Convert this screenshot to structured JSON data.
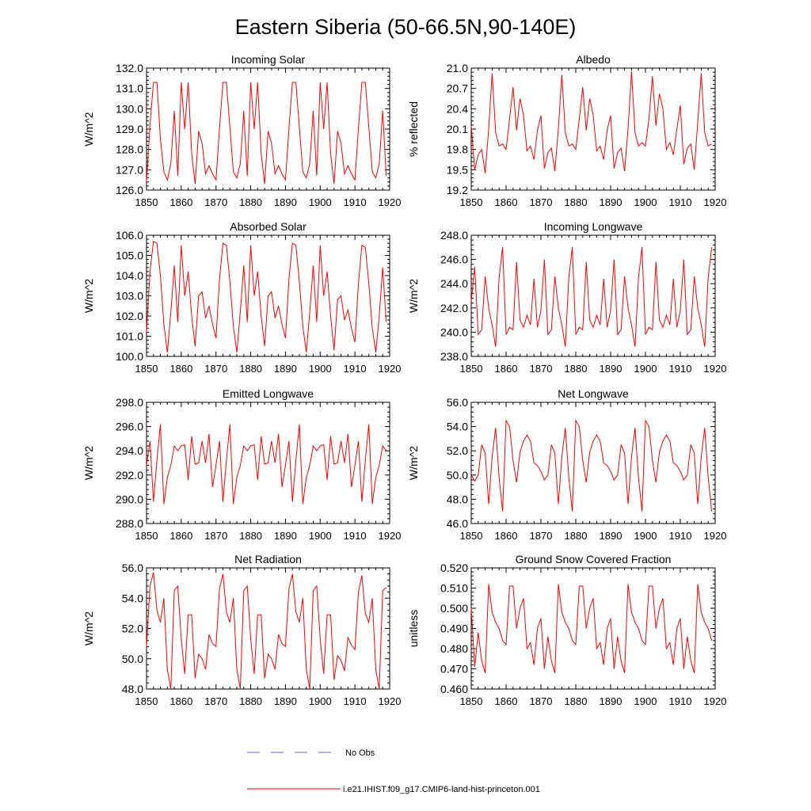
{
  "title": "Eastern Siberia (50-66.5N,90-140E)",
  "colors": {
    "model": "#ff0000",
    "obs": "#6a6ad0",
    "axis": "#000000"
  },
  "legend": {
    "obs_label": "No Obs",
    "model_label": "i.e21.IHIST.f09_g17.CMIP6-land-hist-princeton.001"
  },
  "chart_data": [
    {
      "type": "line",
      "title": "Incoming Solar",
      "ylabel": "W/m^2",
      "xlim": [
        1850,
        1920
      ],
      "ylim": [
        126.0,
        132.0
      ],
      "xticks": [
        1850,
        1860,
        1870,
        1880,
        1890,
        1900,
        1910,
        1920
      ],
      "xticklabels": [
        "1850",
        "1860",
        "1870",
        "1880",
        "1890",
        "1900",
        "1910",
        "1920"
      ],
      "yticks": [
        126.0,
        127.0,
        128.0,
        129.0,
        130.0,
        131.0,
        132.0
      ],
      "yticklabels": [
        "126.0",
        "127.0",
        "128.0",
        "129.0",
        "130.0",
        "131.0",
        "132.0"
      ],
      "x_start": 1850,
      "series": [
        {
          "values": [
            126.4,
            129.2,
            131.3,
            131.3,
            128.5,
            126.9,
            126.5,
            127.3,
            129.9,
            126.7,
            131.3,
            129.0,
            131.3,
            127.8,
            126.3,
            128.9,
            128.3,
            126.8,
            127.2,
            126.8,
            126.5,
            129.0,
            131.3,
            131.3,
            129.1,
            126.9,
            126.6,
            127.3,
            129.9,
            126.7,
            131.3,
            129.0,
            131.3,
            127.8,
            126.3,
            128.9,
            128.3,
            126.8,
            127.2,
            126.8,
            126.5,
            129.0,
            131.3,
            131.3,
            129.1,
            126.9,
            126.6,
            127.3,
            129.9,
            126.7,
            131.3,
            129.0,
            131.3,
            127.8,
            126.3,
            128.9,
            128.3,
            126.8,
            127.2,
            126.8,
            126.5,
            129.0,
            131.3,
            131.3,
            129.1,
            126.9,
            126.6,
            127.3,
            129.9,
            126.7
          ]
        }
      ]
    },
    {
      "type": "line",
      "title": "Albedo",
      "ylabel": "% reflected",
      "xlim": [
        1850,
        1920
      ],
      "ylim": [
        19.2,
        21.0
      ],
      "xticks": [
        1850,
        1860,
        1870,
        1880,
        1890,
        1900,
        1910,
        1920
      ],
      "xticklabels": [
        "1850",
        "1860",
        "1870",
        "1880",
        "1890",
        "1900",
        "1910",
        "1920"
      ],
      "yticks": [
        19.2,
        19.5,
        19.8,
        20.1,
        20.4,
        20.7,
        21.0
      ],
      "yticklabels": [
        "19.2",
        "19.5",
        "19.8",
        "20.1",
        "20.4",
        "20.7",
        "21.0"
      ],
      "x_start": 1850,
      "series": [
        {
          "values": [
            20.15,
            19.5,
            19.72,
            19.8,
            19.45,
            20.1,
            20.92,
            20.05,
            19.85,
            19.88,
            19.8,
            20.25,
            20.72,
            20.08,
            20.55,
            20.3,
            19.78,
            19.85,
            19.65,
            20.08,
            20.3,
            19.52,
            19.75,
            19.82,
            19.48,
            20.1,
            20.9,
            20.05,
            19.85,
            19.88,
            19.8,
            20.25,
            20.72,
            20.08,
            20.55,
            20.3,
            19.78,
            19.85,
            19.65,
            20.08,
            20.3,
            19.52,
            19.75,
            19.82,
            19.48,
            20.1,
            20.95,
            20.05,
            19.85,
            19.9,
            19.85,
            20.25,
            20.88,
            20.15,
            20.62,
            20.4,
            19.8,
            19.9,
            19.72,
            20.1,
            20.45,
            19.58,
            19.82,
            19.88,
            19.5,
            20.2,
            20.92,
            20.05,
            19.85,
            19.88
          ]
        }
      ]
    },
    {
      "type": "line",
      "title": "Absorbed Solar",
      "ylabel": "W/m^2",
      "xlim": [
        1850,
        1920
      ],
      "ylim": [
        100.0,
        106.0
      ],
      "xticks": [
        1850,
        1860,
        1870,
        1880,
        1890,
        1900,
        1910,
        1920
      ],
      "xticklabels": [
        "1850",
        "1860",
        "1870",
        "1880",
        "1890",
        "1900",
        "1910",
        "1920"
      ],
      "yticks": [
        100.0,
        101.0,
        102.0,
        103.0,
        104.0,
        105.0,
        106.0
      ],
      "yticklabels": [
        "100.0",
        "101.0",
        "102.0",
        "103.0",
        "104.0",
        "105.0",
        "106.0"
      ],
      "x_start": 1850,
      "series": [
        {
          "values": [
            101.2,
            104.2,
            105.7,
            105.6,
            104.0,
            101.6,
            100.2,
            102.2,
            104.5,
            101.7,
            105.5,
            103.0,
            104.2,
            102.0,
            100.5,
            103.0,
            103.2,
            101.9,
            102.5,
            101.6,
            100.9,
            103.8,
            105.6,
            105.5,
            103.7,
            101.5,
            100.2,
            102.2,
            104.5,
            101.7,
            105.5,
            103.0,
            104.2,
            102.0,
            100.5,
            103.0,
            103.2,
            101.9,
            102.5,
            101.6,
            100.9,
            103.8,
            105.6,
            105.5,
            103.7,
            101.5,
            100.2,
            102.2,
            104.5,
            101.7,
            105.5,
            103.0,
            104.2,
            102.0,
            100.3,
            102.8,
            103.0,
            101.8,
            102.3,
            101.4,
            100.7,
            103.6,
            105.5,
            105.4,
            103.6,
            101.4,
            100.2,
            102.0,
            104.4,
            101.7
          ]
        }
      ]
    },
    {
      "type": "line",
      "title": "Incoming Longwave",
      "ylabel": "W/m^2",
      "xlim": [
        1850,
        1920
      ],
      "ylim": [
        238.0,
        248.0
      ],
      "xticks": [
        1850,
        1860,
        1870,
        1880,
        1890,
        1900,
        1910,
        1920
      ],
      "xticklabels": [
        "1850",
        "1860",
        "1870",
        "1880",
        "1890",
        "1900",
        "1910",
        "1920"
      ],
      "yticks": [
        238.0,
        240.0,
        242.0,
        244.0,
        246.0,
        248.0
      ],
      "yticklabels": [
        "238.0",
        "240.0",
        "242.0",
        "244.0",
        "246.0",
        "248.0"
      ],
      "x_start": 1850,
      "series": [
        {
          "values": [
            242.5,
            245.4,
            239.8,
            240.2,
            244.6,
            242.0,
            240.6,
            238.8,
            244.5,
            247.0,
            239.8,
            240.4,
            240.2,
            245.8,
            241.0,
            240.4,
            241.4,
            240.6,
            244.4,
            240.4,
            241.8,
            246.0,
            239.8,
            240.2,
            244.6,
            242.0,
            240.6,
            238.8,
            244.5,
            247.0,
            239.8,
            240.4,
            240.2,
            245.8,
            241.0,
            240.4,
            241.4,
            240.6,
            244.4,
            240.4,
            241.8,
            246.0,
            239.8,
            240.2,
            244.6,
            242.0,
            240.6,
            238.8,
            244.5,
            247.0,
            239.8,
            240.4,
            240.2,
            245.8,
            241.0,
            240.4,
            241.4,
            240.6,
            244.4,
            240.4,
            241.8,
            246.0,
            239.8,
            240.2,
            244.6,
            242.0,
            240.6,
            238.8,
            244.5,
            247.0
          ]
        }
      ]
    },
    {
      "type": "line",
      "title": "Emitted Longwave",
      "ylabel": "W/m^2",
      "xlim": [
        1850,
        1920
      ],
      "ylim": [
        288.0,
        298.0
      ],
      "xticks": [
        1850,
        1860,
        1870,
        1880,
        1890,
        1900,
        1910,
        1920
      ],
      "xticklabels": [
        "1850",
        "1860",
        "1870",
        "1880",
        "1890",
        "1900",
        "1910",
        "1920"
      ],
      "yticks": [
        288.0,
        290.0,
        292.0,
        294.0,
        296.0,
        298.0
      ],
      "yticklabels": [
        "288.0",
        "290.0",
        "292.0",
        "294.0",
        "296.0",
        "298.0"
      ],
      "x_start": 1850,
      "series": [
        {
          "values": [
            292.8,
            294.8,
            289.8,
            293.2,
            296.2,
            289.6,
            291.8,
            292.8,
            294.4,
            294.0,
            294.4,
            294.5,
            291.6,
            295.2,
            292.9,
            293.0,
            294.8,
            293.0,
            295.4,
            291.0,
            292.8,
            294.8,
            289.8,
            293.2,
            296.2,
            289.6,
            291.8,
            292.8,
            294.4,
            294.0,
            294.4,
            294.5,
            291.6,
            295.2,
            292.9,
            293.0,
            294.8,
            293.0,
            295.4,
            291.0,
            292.8,
            294.8,
            289.8,
            293.2,
            296.2,
            289.6,
            291.8,
            292.8,
            294.4,
            294.0,
            294.4,
            294.5,
            291.6,
            295.2,
            292.9,
            293.0,
            294.8,
            293.0,
            295.4,
            291.0,
            292.8,
            294.8,
            289.8,
            293.2,
            296.2,
            289.6,
            291.8,
            292.8,
            294.4,
            294.0
          ]
        }
      ]
    },
    {
      "type": "line",
      "title": "Net Longwave",
      "ylabel": "W/m^2",
      "xlim": [
        1850,
        1920
      ],
      "ylim": [
        46.0,
        56.0
      ],
      "xticks": [
        1850,
        1860,
        1870,
        1880,
        1890,
        1900,
        1910,
        1920
      ],
      "xticklabels": [
        "1850",
        "1860",
        "1870",
        "1880",
        "1890",
        "1900",
        "1910",
        "1920"
      ],
      "yticks": [
        46.0,
        48.0,
        50.0,
        52.0,
        54.0,
        56.0
      ],
      "yticklabels": [
        "46.0",
        "48.0",
        "50.0",
        "52.0",
        "54.0",
        "56.0"
      ],
      "x_start": 1850,
      "series": [
        {
          "values": [
            50.0,
            49.5,
            50.0,
            52.5,
            51.8,
            47.6,
            51.5,
            53.9,
            49.8,
            47.0,
            54.5,
            54.0,
            51.2,
            49.4,
            51.9,
            52.8,
            53.3,
            52.8,
            51.0,
            50.8,
            50.3,
            49.6,
            50.0,
            52.5,
            51.8,
            47.6,
            51.5,
            53.9,
            49.8,
            47.0,
            54.5,
            54.0,
            51.2,
            49.4,
            51.9,
            52.8,
            53.3,
            52.8,
            51.0,
            50.8,
            50.3,
            49.6,
            50.0,
            52.5,
            51.8,
            47.6,
            51.5,
            53.9,
            49.8,
            47.0,
            54.5,
            54.0,
            51.2,
            49.4,
            51.9,
            52.8,
            53.3,
            52.8,
            51.0,
            50.8,
            50.3,
            49.6,
            50.0,
            52.5,
            51.8,
            47.6,
            51.5,
            53.9,
            49.8,
            47.0
          ]
        }
      ]
    },
    {
      "type": "line",
      "title": "Net Radiation",
      "ylabel": "W/m^2",
      "xlim": [
        1850,
        1920
      ],
      "ylim": [
        48.0,
        56.0
      ],
      "xticks": [
        1850,
        1860,
        1870,
        1880,
        1890,
        1900,
        1910,
        1920
      ],
      "xticklabels": [
        "1850",
        "1860",
        "1870",
        "1880",
        "1890",
        "1900",
        "1910",
        "1920"
      ],
      "yticks": [
        48.0,
        50.0,
        52.0,
        54.0,
        56.0
      ],
      "yticklabels": [
        "48.0",
        "50.0",
        "52.0",
        "54.0",
        "56.0"
      ],
      "x_start": 1850,
      "series": [
        {
          "values": [
            50.8,
            54.8,
            55.7,
            53.2,
            52.4,
            54.0,
            49.3,
            48.0,
            54.5,
            54.8,
            51.3,
            49.0,
            52.9,
            52.9,
            48.7,
            50.3,
            50.0,
            49.3,
            51.6,
            51.0,
            50.8,
            54.6,
            55.6,
            53.1,
            52.4,
            54.0,
            49.3,
            48.0,
            54.5,
            54.8,
            51.3,
            49.0,
            52.9,
            52.9,
            48.7,
            50.3,
            50.0,
            49.3,
            51.6,
            51.0,
            50.8,
            54.6,
            55.6,
            53.1,
            52.4,
            54.0,
            49.3,
            48.0,
            54.5,
            54.8,
            51.3,
            49.0,
            52.9,
            52.9,
            48.6,
            50.2,
            49.9,
            49.2,
            51.4,
            50.9,
            50.6,
            54.4,
            55.5,
            53.0,
            52.4,
            54.0,
            49.3,
            48.0,
            54.5,
            54.7
          ]
        }
      ]
    },
    {
      "type": "line",
      "title": "Ground Snow Covered Fraction",
      "ylabel": "unitless",
      "xlim": [
        1850,
        1920
      ],
      "ylim": [
        0.46,
        0.52
      ],
      "xticks": [
        1850,
        1860,
        1870,
        1880,
        1890,
        1900,
        1910,
        1920
      ],
      "xticklabels": [
        "1850",
        "1860",
        "1870",
        "1880",
        "1890",
        "1900",
        "1910",
        "1920"
      ],
      "yticks": [
        0.46,
        0.47,
        0.48,
        0.49,
        0.5,
        0.51,
        0.52
      ],
      "yticklabels": [
        "0.460",
        "0.470",
        "0.480",
        "0.490",
        "0.500",
        "0.510",
        "0.520"
      ],
      "x_start": 1850,
      "series": [
        {
          "values": [
            0.5,
            0.471,
            0.488,
            0.474,
            0.468,
            0.512,
            0.498,
            0.493,
            0.49,
            0.484,
            0.482,
            0.511,
            0.511,
            0.49,
            0.5,
            0.505,
            0.48,
            0.483,
            0.472,
            0.49,
            0.495,
            0.47,
            0.486,
            0.474,
            0.468,
            0.512,
            0.498,
            0.493,
            0.49,
            0.484,
            0.482,
            0.511,
            0.511,
            0.49,
            0.5,
            0.505,
            0.48,
            0.483,
            0.472,
            0.49,
            0.495,
            0.47,
            0.486,
            0.474,
            0.468,
            0.512,
            0.498,
            0.493,
            0.49,
            0.484,
            0.482,
            0.511,
            0.511,
            0.49,
            0.5,
            0.505,
            0.48,
            0.483,
            0.472,
            0.49,
            0.495,
            0.47,
            0.486,
            0.474,
            0.468,
            0.512,
            0.498,
            0.493,
            0.49,
            0.484
          ]
        }
      ]
    }
  ]
}
